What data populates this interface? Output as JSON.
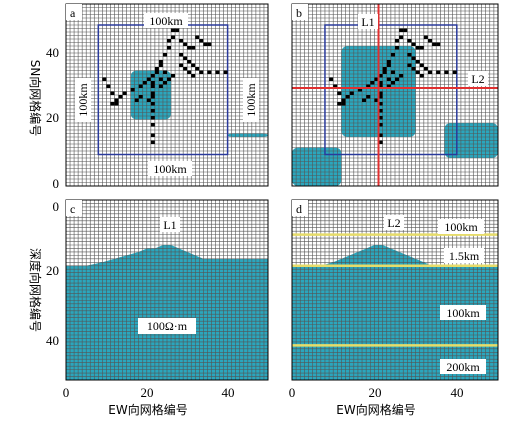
{
  "colors": {
    "grid": "#555555",
    "background": "#ffffff",
    "anomaly": "#2ba6bd",
    "outline": "#2a3a9c",
    "profile_line": "#e03030",
    "interface": "#e6dc6a",
    "dots": "#000000"
  },
  "chart_data": [
    {
      "panel": "a",
      "type": "heatmap",
      "grid": true,
      "xlim": [
        0,
        50
      ],
      "ylim": [
        0,
        52
      ],
      "yticks": [
        0,
        20,
        40
      ],
      "xticks": [
        0,
        20,
        40
      ],
      "ylabel": "SN向网格编号",
      "anomaly_regions": [
        {
          "name": "central body",
          "x": [
            16,
            26
          ],
          "y": [
            19,
            33
          ]
        },
        {
          "name": "east strip",
          "x": [
            40,
            50
          ],
          "y": [
            14,
            15
          ]
        }
      ],
      "outline_box": {
        "x": [
          8,
          40
        ],
        "y": [
          9,
          46
        ]
      },
      "annotations": [
        "100km",
        "100km",
        "100km",
        "100km"
      ],
      "dots": [
        [
          21,
          31
        ],
        [
          22,
          32
        ],
        [
          22,
          33
        ],
        [
          23,
          34
        ],
        [
          23,
          35
        ],
        [
          24,
          37
        ],
        [
          25,
          39
        ],
        [
          25,
          41
        ],
        [
          26,
          42
        ],
        [
          26,
          44
        ],
        [
          27,
          44
        ],
        [
          28,
          41
        ],
        [
          29,
          40
        ],
        [
          30,
          39
        ],
        [
          31,
          39
        ],
        [
          32,
          42
        ],
        [
          33,
          41
        ],
        [
          34,
          40
        ],
        [
          35,
          40
        ],
        [
          28,
          37
        ],
        [
          29,
          36
        ],
        [
          30,
          35
        ],
        [
          31,
          34
        ],
        [
          32,
          33
        ],
        [
          33,
          32
        ],
        [
          35,
          32
        ],
        [
          37,
          32
        ],
        [
          39,
          32
        ],
        [
          28,
          34
        ],
        [
          29,
          33
        ],
        [
          30,
          32
        ],
        [
          31,
          31
        ],
        [
          20,
          30
        ],
        [
          19,
          29
        ],
        [
          18,
          28
        ],
        [
          16,
          27
        ],
        [
          14,
          26
        ],
        [
          13,
          25
        ],
        [
          12,
          23
        ],
        [
          11,
          23
        ],
        [
          21,
          29
        ],
        [
          21,
          28
        ],
        [
          21,
          26
        ],
        [
          21,
          25
        ],
        [
          21,
          23
        ],
        [
          21,
          21
        ],
        [
          21,
          19
        ],
        [
          21,
          17
        ],
        [
          21,
          14
        ],
        [
          21,
          12
        ],
        [
          20,
          24
        ],
        [
          18,
          25
        ],
        [
          17,
          24
        ],
        [
          9,
          30
        ],
        [
          10,
          28
        ],
        [
          11,
          26
        ],
        [
          12,
          24
        ],
        [
          23,
          28
        ],
        [
          24,
          29
        ],
        [
          25,
          30
        ],
        [
          26,
          31
        ],
        [
          24,
          32
        ],
        [
          23,
          30
        ]
      ]
    },
    {
      "panel": "b",
      "type": "heatmap",
      "grid": true,
      "xlim": [
        0,
        50
      ],
      "ylim": [
        0,
        52
      ],
      "yticks": [
        0,
        20,
        40
      ],
      "xticks": [
        0,
        20,
        40
      ],
      "anomaly_regions": [
        {
          "name": "large central body",
          "x": [
            12,
            30
          ],
          "y": [
            14,
            40
          ]
        },
        {
          "name": "east body",
          "x": [
            37,
            50
          ],
          "y": [
            8,
            18
          ]
        },
        {
          "name": "south-west body",
          "x": [
            0,
            12
          ],
          "y": [
            0,
            11
          ]
        }
      ],
      "outline_box": {
        "x": [
          8,
          40
        ],
        "y": [
          9,
          46
        ]
      },
      "profile_lines": [
        {
          "label": "L1",
          "orientation": "vertical",
          "x": 21
        },
        {
          "label": "L2",
          "orientation": "horizontal",
          "y": 28
        }
      ],
      "annotations": [
        "L1",
        "L2"
      ]
    },
    {
      "panel": "c",
      "type": "heatmap",
      "grid": true,
      "xlim": [
        0,
        50
      ],
      "ylim": [
        0,
        52
      ],
      "y_inverted": true,
      "yticks": [
        0,
        20,
        40
      ],
      "xticks": [
        0,
        20,
        40
      ],
      "xlabel": "EW向网格编号",
      "ylabel": "深度向网格编号",
      "surface_profile": [
        [
          0,
          19
        ],
        [
          5,
          19
        ],
        [
          9,
          18
        ],
        [
          12,
          17
        ],
        [
          15,
          16
        ],
        [
          18,
          15
        ],
        [
          20,
          14
        ],
        [
          22,
          14
        ],
        [
          24,
          13
        ],
        [
          26,
          13
        ],
        [
          28,
          14
        ],
        [
          30,
          15
        ],
        [
          32,
          16
        ],
        [
          34,
          17
        ],
        [
          38,
          17
        ],
        [
          44,
          17
        ],
        [
          50,
          17
        ]
      ],
      "annotations": [
        "L1",
        "100Ω·m"
      ]
    },
    {
      "panel": "d",
      "type": "heatmap",
      "grid": true,
      "xlim": [
        0,
        50
      ],
      "ylim": [
        0,
        52
      ],
      "y_inverted": true,
      "yticks": [
        0,
        20,
        40
      ],
      "xticks": [
        0,
        20,
        40
      ],
      "xlabel": "EW向网格编号",
      "surface_profile": [
        [
          0,
          19
        ],
        [
          7,
          19
        ],
        [
          10,
          18
        ],
        [
          12,
          17
        ],
        [
          14,
          16
        ],
        [
          16,
          15
        ],
        [
          18,
          14
        ],
        [
          20,
          13
        ],
        [
          22,
          13
        ],
        [
          24,
          14
        ],
        [
          26,
          15
        ],
        [
          28,
          16
        ],
        [
          30,
          17
        ],
        [
          32,
          18
        ],
        [
          34,
          19
        ],
        [
          50,
          19
        ]
      ],
      "interfaces": [
        10,
        19,
        42
      ],
      "annotations": [
        "L2",
        "100km",
        "1.5km",
        "100km",
        "200km"
      ]
    }
  ],
  "panels": {
    "a": {
      "label": "a",
      "ann_top": "100km",
      "ann_left": "100km",
      "ann_right": "100km",
      "ann_bottom": "100km"
    },
    "b": {
      "label": "b",
      "l1": "L1",
      "l2": "L2"
    },
    "c": {
      "label": "c",
      "l1": "L1",
      "resistivity": "100Ω·m"
    },
    "d": {
      "label": "d",
      "l2": "L2",
      "t1": "100km",
      "t2": "1.5km",
      "t3": "100km",
      "t4": "200km"
    }
  },
  "ticks": {
    "x0": "0",
    "x20": "20",
    "x40": "40",
    "y0": "0",
    "y20": "20",
    "y40": "40"
  },
  "labels": {
    "y_top": "SN向网格编号",
    "y_bottom": "深度向网格编号",
    "x_left": "EW向网格编号",
    "x_right": "EW向网格编号"
  }
}
